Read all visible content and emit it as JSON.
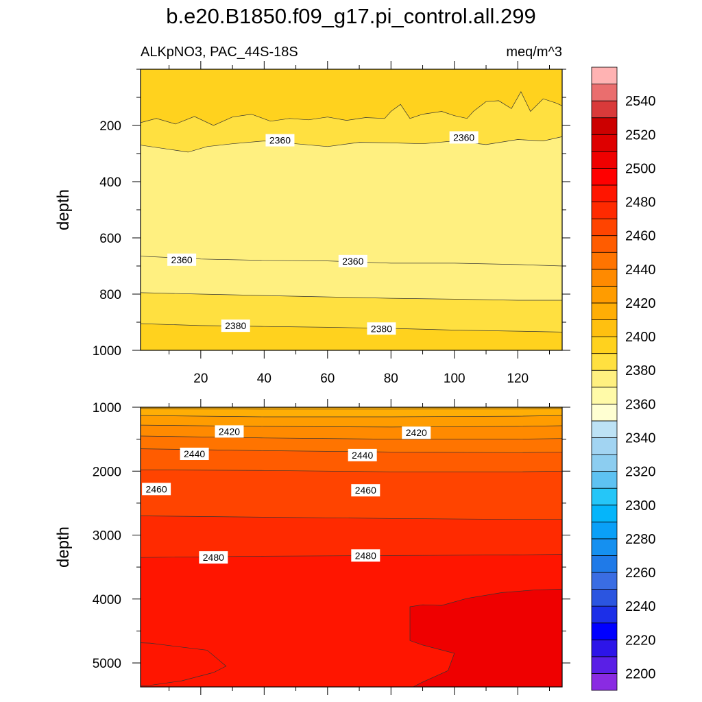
{
  "chart_data": {
    "type": "contour",
    "title": "b.e20.B1850.f09_g17.pi_control.all.299",
    "variable": "ALKpNO3, PAC_44S-18S",
    "units": "meq/m^3",
    "panels": [
      {
        "name": "upper",
        "ylabel": "depth",
        "xlim": [
          1,
          134
        ],
        "ylim": [
          0,
          1000
        ],
        "y_inverted": true,
        "x_ticks": [
          20,
          40,
          60,
          80,
          100,
          120
        ],
        "y_ticks": [
          200,
          400,
          600,
          800,
          1000
        ],
        "contour_labels": [
          {
            "text": "2360",
            "x": 45,
            "depth": 255
          },
          {
            "text": "2360",
            "x": 103,
            "depth": 245
          },
          {
            "text": "2360",
            "x": 14,
            "depth": 680
          },
          {
            "text": "2360",
            "x": 68,
            "depth": 685
          },
          {
            "text": "2380",
            "x": 31,
            "depth": 915
          },
          {
            "text": "2380",
            "x": 77,
            "depth": 925
          }
        ]
      },
      {
        "name": "lower",
        "ylabel": "depth",
        "xlim": [
          1,
          134
        ],
        "ylim": [
          1000,
          5375
        ],
        "y_inverted": true,
        "y_ticks": [
          1000,
          2000,
          3000,
          4000,
          5000
        ],
        "contour_labels": [
          {
            "text": "2420",
            "x": 29,
            "depth": 1390
          },
          {
            "text": "2420",
            "x": 88,
            "depth": 1410
          },
          {
            "text": "2440",
            "x": 18,
            "depth": 1740
          },
          {
            "text": "2440",
            "x": 71,
            "depth": 1760
          },
          {
            "text": "2460",
            "x": 6,
            "depth": 2290
          },
          {
            "text": "2460",
            "x": 72,
            "depth": 2310
          },
          {
            "text": "2480",
            "x": 24,
            "depth": 3360
          },
          {
            "text": "2480",
            "x": 72,
            "depth": 3330
          }
        ]
      }
    ],
    "colorbar": {
      "min": 2190,
      "step": 10,
      "labels": [
        "2200",
        "2220",
        "2240",
        "2260",
        "2280",
        "2300",
        "2320",
        "2340",
        "2360",
        "2380",
        "2400",
        "2420",
        "2440",
        "2460",
        "2480",
        "2500",
        "2520",
        "2540"
      ],
      "colors": [
        "#8a2be2",
        "#5a1fe6",
        "#2d15e8",
        "#0000ff",
        "#1c2fe8",
        "#2b55e0",
        "#3a6de3",
        "#1f7ae8",
        "#1590f0",
        "#0aa0f8",
        "#05b5fa",
        "#25c6f8",
        "#5ec2f2",
        "#8ccdf0",
        "#a2d4f2",
        "#bde2f5",
        "#ffffd2",
        "#fffaa8",
        "#fff080",
        "#ffe040",
        "#ffd21e",
        "#ffc010",
        "#ffae05",
        "#ff9c00",
        "#ff8a00",
        "#ff7400",
        "#ff5c00",
        "#ff4400",
        "#ff2a00",
        "#ff1500",
        "#ff0000",
        "#ef0000",
        "#de0000",
        "#cc0000",
        "#d93a3a",
        "#ea6e6e",
        "#ffb3b3"
      ]
    }
  }
}
